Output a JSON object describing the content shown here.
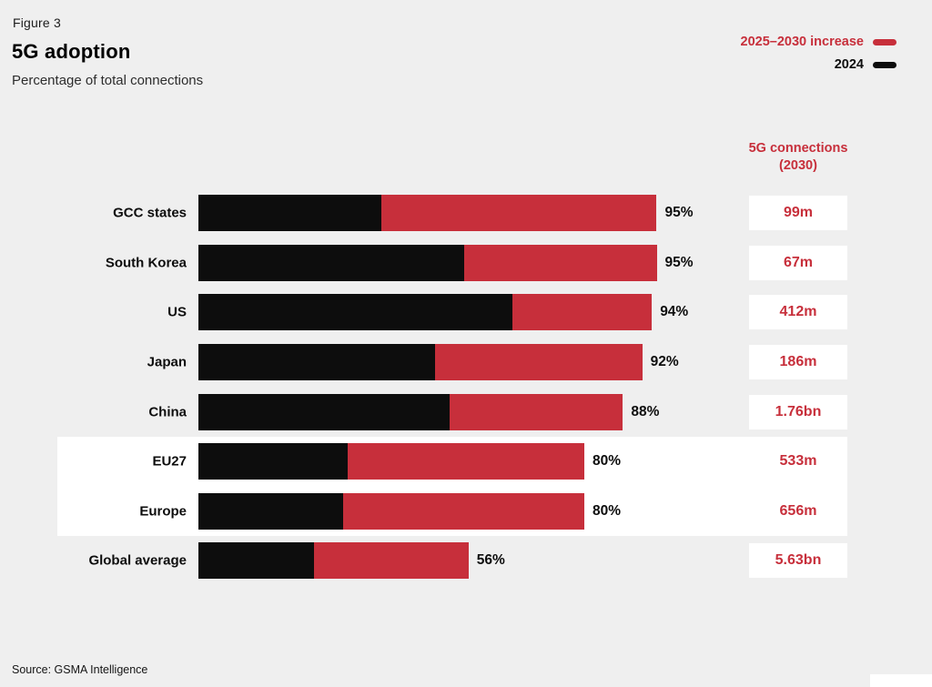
{
  "header": {
    "figure_label": "Figure 3",
    "title": "5G adoption",
    "subtitle": "Percentage of total connections"
  },
  "legend": {
    "items": [
      {
        "label": "2025–2030 increase",
        "color": "#c72f3b"
      },
      {
        "label": "2024",
        "color": "#0d0d0d"
      }
    ]
  },
  "right_column_header": "5G connections (2030)",
  "footer": {
    "source": "Source: GSMA Intelligence"
  },
  "chart_data": {
    "type": "bar",
    "orientation": "horizontal",
    "stacked": true,
    "title": "5G adoption",
    "subtitle": "Percentage of total connections",
    "figure_label": "Figure 3",
    "categories": [
      "GCC states",
      "South Korea",
      "US",
      "Japan",
      "China",
      "EU27",
      "Europe",
      "Global average"
    ],
    "series": [
      {
        "name": "2024",
        "color": "#0d0d0d",
        "values": [
          38,
          55,
          65,
          49,
          52,
          31,
          30,
          24
        ]
      },
      {
        "name": "2025–2030 increase",
        "color": "#c72f3b",
        "values": [
          57,
          40,
          29,
          43,
          36,
          49,
          50,
          32
        ]
      }
    ],
    "totals_label": [
      "95%",
      "95%",
      "94%",
      "92%",
      "88%",
      "80%",
      "80%",
      "56%"
    ],
    "right_column": {
      "header": "5G connections (2030)",
      "values": [
        "99m",
        "67m",
        "412m",
        "186m",
        "1.76bn",
        "533m",
        "656m",
        "5.63bn"
      ]
    },
    "highlighted_rows": [
      "EU27",
      "Europe"
    ],
    "xlim": [
      0,
      100
    ],
    "legend_position": "top-right",
    "source": "Source: GSMA Intelligence"
  }
}
